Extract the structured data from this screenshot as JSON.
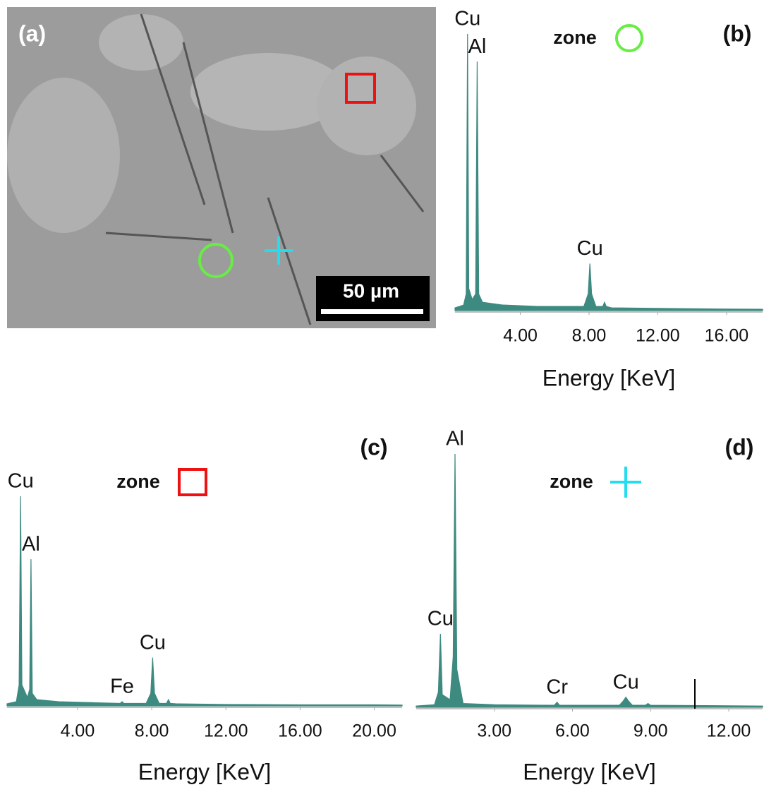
{
  "micrograph": {
    "label": "(a)",
    "scale_bar": "50 µm"
  },
  "chart_data": [
    {
      "type": "area",
      "title": "(b)",
      "legend": "zone",
      "marker": "circle",
      "marker_color": "#66ee44",
      "color": "#3d8a80",
      "x_label": "Energy [KeV]",
      "xlim": [
        0.2,
        18.1
      ],
      "ylim": [
        0,
        100
      ],
      "xticks": [
        {
          "value": 4,
          "label": "4.00"
        },
        {
          "value": 8,
          "label": "8.00"
        },
        {
          "value": 12,
          "label": "12.00"
        },
        {
          "value": 16,
          "label": "16.00"
        }
      ],
      "x": [
        0.2,
        0.7,
        0.85,
        0.93,
        1.0,
        1.2,
        1.4,
        1.49,
        1.58,
        1.8,
        3,
        5,
        7.7,
        7.95,
        8.05,
        8.15,
        8.4,
        8.8,
        8.9,
        9.0,
        9.3,
        12,
        15,
        18.1
      ],
      "values": [
        1,
        2,
        6,
        100,
        8,
        4,
        6,
        90,
        6,
        3,
        2,
        1.5,
        1.5,
        6,
        17,
        6,
        1.5,
        1.5,
        3,
        1.5,
        1,
        0.8,
        0.6,
        0.5
      ],
      "peak_labels": [
        {
          "text": "Cu",
          "x": 0.93
        },
        {
          "text": "Al",
          "x": 1.49
        },
        {
          "text": "Cu",
          "x": 8.05
        }
      ]
    },
    {
      "type": "area",
      "title": "(c)",
      "legend": "zone",
      "marker": "square",
      "marker_color": "#ee1111",
      "color": "#3d8a80",
      "x_label": "Energy [KeV]",
      "xlim": [
        0.2,
        21.5
      ],
      "ylim": [
        0,
        100
      ],
      "xticks": [
        {
          "value": 4,
          "label": "4.00"
        },
        {
          "value": 8,
          "label": "8.00"
        },
        {
          "value": 12,
          "label": "12.00"
        },
        {
          "value": 16,
          "label": "16.00"
        },
        {
          "value": 20,
          "label": "20.00"
        }
      ],
      "x": [
        0.2,
        0.7,
        0.85,
        0.93,
        1.0,
        1.3,
        1.42,
        1.49,
        1.56,
        1.8,
        3,
        5,
        6.3,
        6.4,
        6.5,
        7.7,
        7.95,
        8.05,
        8.15,
        8.4,
        8.8,
        8.9,
        9.0,
        9.3,
        12,
        16,
        20,
        21.5
      ],
      "values": [
        1,
        2,
        10,
        100,
        10,
        4,
        8,
        70,
        6,
        3,
        2,
        1.5,
        1.2,
        2,
        1.2,
        1.2,
        6,
        23,
        6,
        1.2,
        1.2,
        3,
        1.2,
        1,
        0.7,
        0.5,
        0.5,
        0.4
      ],
      "peak_labels": [
        {
          "text": "Cu",
          "x": 0.93
        },
        {
          "text": "Al",
          "x": 1.49
        },
        {
          "text": "Fe",
          "x": 6.4
        },
        {
          "text": "Cu",
          "x": 8.05
        }
      ]
    },
    {
      "type": "area",
      "title": "(d)",
      "legend": "zone",
      "marker": "plus",
      "marker_color": "#22ddee",
      "color": "#3d8a80",
      "x_label": "Energy [KeV]",
      "xlim": [
        0,
        13.3
      ],
      "ylim": [
        0,
        100
      ],
      "xticks": [
        {
          "value": 3,
          "label": "3.00"
        },
        {
          "value": 6,
          "label": "6.00"
        },
        {
          "value": 9,
          "label": "9.00"
        },
        {
          "value": 12,
          "label": "12.00"
        }
      ],
      "x": [
        0,
        0.7,
        0.85,
        0.93,
        1.0,
        1.3,
        1.42,
        1.49,
        1.56,
        1.8,
        3,
        5.3,
        5.41,
        5.5,
        7.8,
        7.95,
        8.05,
        8.15,
        8.3,
        8.8,
        8.9,
        9.0,
        13.3
      ],
      "values": [
        0.5,
        1,
        6,
        29,
        5,
        3,
        20,
        100,
        15,
        1.5,
        1,
        0.8,
        2,
        0.8,
        0.8,
        2.5,
        4,
        2.5,
        0.8,
        0.8,
        1.5,
        0.8,
        0.5
      ],
      "cursor": 10.7,
      "peak_labels": [
        {
          "text": "Al",
          "x": 1.49
        },
        {
          "text": "Cu",
          "x": 0.93
        },
        {
          "text": "Cr",
          "x": 5.41
        },
        {
          "text": "Cu",
          "x": 8.05
        }
      ]
    }
  ]
}
